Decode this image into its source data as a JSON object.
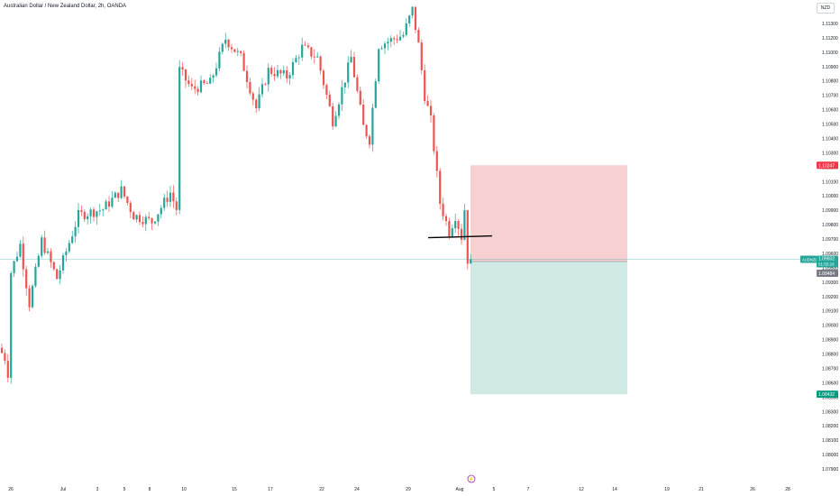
{
  "header": {
    "title": "Australian Dollar / New Zealand Dollar, 2h, OANDA",
    "currency_button": "NZD"
  },
  "colors": {
    "up": "#26a69a",
    "down": "#ef5350",
    "stop_zone": "#f7d0d2",
    "target_zone": "#cfe9e4",
    "price_line": "#26a69a",
    "stop_label_bg": "#f23645",
    "target_label_bg": "#089981",
    "entry_label_bg": "#787b86"
  },
  "chart_data": {
    "type": "candlestick",
    "symbol": "AUDNZD",
    "interval": "2h",
    "source": "OANDA",
    "y_axis_ticks": [
      "1.11300",
      "1.11200",
      "1.11000",
      "1.10900",
      "1.10800",
      "1.10700",
      "1.10600",
      "1.10500",
      "1.10400",
      "1.10300",
      "1.10200",
      "1.10100",
      "1.10000",
      "1.09900",
      "1.09800",
      "1.09700",
      "1.09600",
      "1.09500",
      "1.09300",
      "1.09200",
      "1.09100",
      "1.09000",
      "1.08900",
      "1.08800",
      "1.08700",
      "1.08600",
      "1.08500",
      "1.08300",
      "1.08200",
      "1.08100",
      "1.08000",
      "1.07900"
    ],
    "x_axis_ticks": [
      "26",
      "Jul",
      "3",
      "5",
      "8",
      "10",
      "15",
      "17",
      "22",
      "24",
      "29",
      "Aug",
      "5",
      "7",
      "12",
      "14",
      "19",
      "21",
      "26",
      "28"
    ],
    "ylim": [
      1.0784,
      1.115
    ],
    "current_price": {
      "symbol_label": "AUDNZD",
      "price": "1.09502",
      "countdown": "01:55:23",
      "value": 1.09502
    },
    "position": {
      "stop_label": "1.10247",
      "stop_value": 1.10247,
      "entry_label": "1.09484",
      "entry_value": 1.09484,
      "target_label": "1.08432",
      "target_value": 1.08432
    },
    "support_line_value": 1.0968,
    "waypoints": [
      {
        "t": 0,
        "p": 1.088
      },
      {
        "t": 2,
        "p": 1.0872
      },
      {
        "t": 3,
        "p": 1.086
      },
      {
        "t": 4,
        "p": 1.094
      },
      {
        "t": 7,
        "p": 1.0962
      },
      {
        "t": 10,
        "p": 1.0915
      },
      {
        "t": 14,
        "p": 1.0965
      },
      {
        "t": 19,
        "p": 1.0935
      },
      {
        "t": 26,
        "p": 1.0985
      },
      {
        "t": 34,
        "p": 1.099
      },
      {
        "t": 40,
        "p": 1.1005
      },
      {
        "t": 44,
        "p": 1.0985
      },
      {
        "t": 50,
        "p": 1.098
      },
      {
        "t": 56,
        "p": 1.1003
      },
      {
        "t": 58,
        "p": 1.099
      },
      {
        "t": 59,
        "p": 1.11
      },
      {
        "t": 63,
        "p": 1.1085
      },
      {
        "t": 69,
        "p": 1.109
      },
      {
        "t": 74,
        "p": 1.1125
      },
      {
        "t": 79,
        "p": 1.111
      },
      {
        "t": 84,
        "p": 1.107
      },
      {
        "t": 88,
        "p": 1.11
      },
      {
        "t": 94,
        "p": 1.1095
      },
      {
        "t": 99,
        "p": 1.1118
      },
      {
        "t": 104,
        "p": 1.111
      },
      {
        "t": 109,
        "p": 1.106
      },
      {
        "t": 115,
        "p": 1.111
      },
      {
        "t": 119,
        "p": 1.1055
      },
      {
        "t": 121,
        "p": 1.1045
      },
      {
        "t": 124,
        "p": 1.112
      },
      {
        "t": 132,
        "p": 1.1128
      },
      {
        "t": 135,
        "p": 1.1148
      },
      {
        "t": 137,
        "p": 1.112
      },
      {
        "t": 139,
        "p": 1.108
      },
      {
        "t": 141,
        "p": 1.106
      },
      {
        "t": 144,
        "p": 1.0995
      },
      {
        "t": 147,
        "p": 1.0972
      },
      {
        "t": 149,
        "p": 1.0985
      },
      {
        "t": 151,
        "p": 1.0968
      },
      {
        "t": 152,
        "p": 1.099
      },
      {
        "t": 153,
        "p": 1.095
      }
    ]
  }
}
